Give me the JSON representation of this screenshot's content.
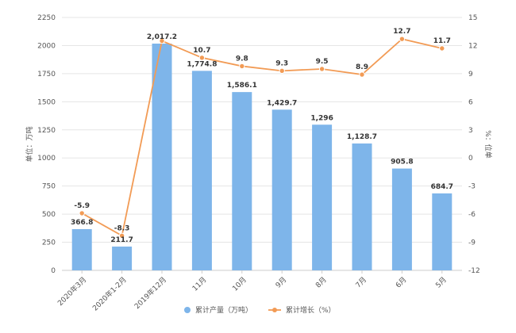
{
  "colors": {
    "bar": "#7eb5ea",
    "line": "#f29b55",
    "grid": "#e5e5e5",
    "axis": "#cccccc",
    "text": "#555555"
  },
  "chart_data": {
    "type": "bar",
    "categories": [
      "2020年3月",
      "2020年1-2月",
      "2019年12月",
      "11月",
      "10月",
      "9月",
      "8月",
      "7月",
      "6月",
      "5月"
    ],
    "series": [
      {
        "name": "累计产量（万吨）",
        "type": "bar",
        "axis": "left",
        "values": [
          366.8,
          211.7,
          2017.2,
          1774.8,
          1586.1,
          1429.7,
          1296,
          1128.7,
          905.8,
          684.7
        ],
        "labels": [
          "366.8",
          "211.7",
          "2,017.2",
          "1,774.8",
          "1,586.1",
          "1,429.7",
          "1,296",
          "1,128.7",
          "905.8",
          "684.7"
        ]
      },
      {
        "name": "累计增长（%）",
        "type": "line",
        "axis": "right",
        "values": [
          -5.9,
          -8.3,
          12.5,
          10.7,
          9.8,
          9.3,
          9.5,
          8.9,
          12.7,
          11.7
        ],
        "labels": [
          "-5.9",
          "-8.3",
          "",
          "10.7",
          "9.8",
          "9.3",
          "9.5",
          "8.9",
          "12.7",
          "11.7"
        ]
      }
    ],
    "y_left": {
      "label": "单位：万吨",
      "ticks": [
        0,
        250,
        500,
        750,
        1000,
        1250,
        1500,
        1750,
        2000,
        2250
      ],
      "range": [
        0,
        2250
      ]
    },
    "y_right": {
      "label": "%：位单",
      "ticks": [
        -12,
        -9,
        -6,
        -3,
        0,
        3,
        6,
        9,
        12,
        15
      ],
      "range": [
        -12,
        15
      ]
    },
    "grid": true,
    "legend_position": "bottom"
  }
}
